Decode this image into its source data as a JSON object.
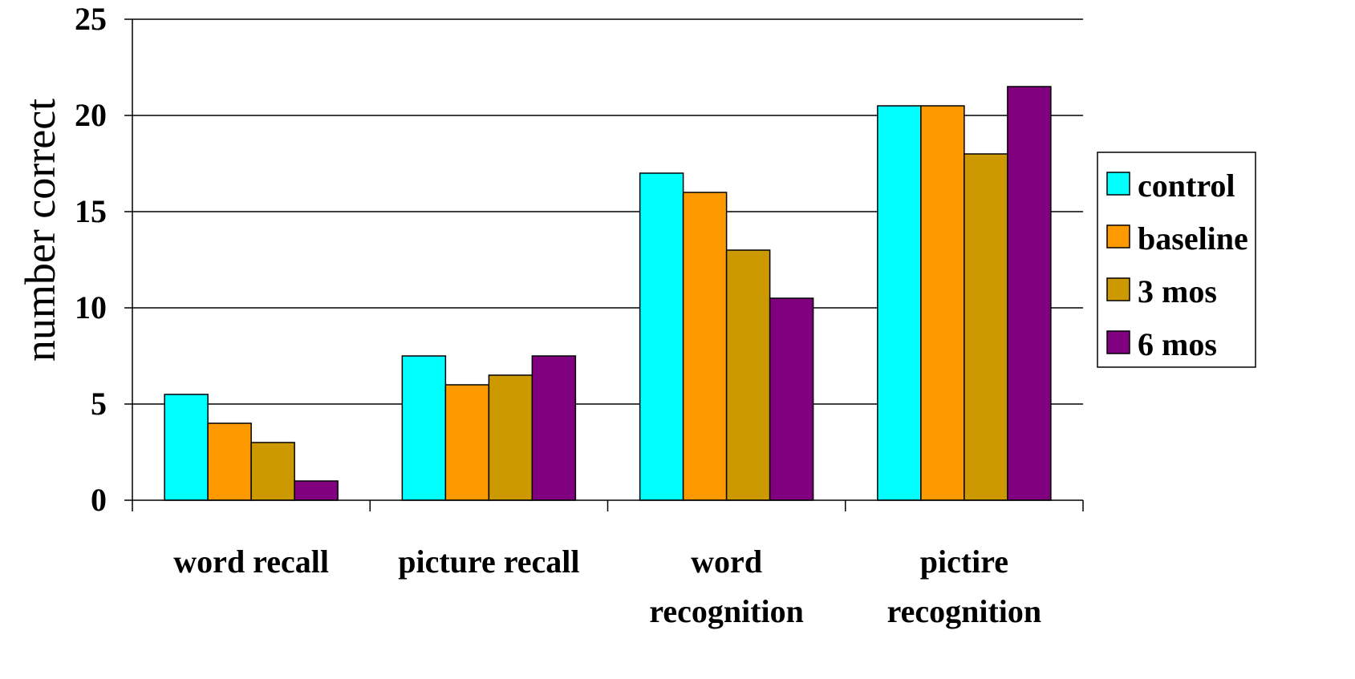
{
  "chart_data": {
    "type": "bar",
    "title": "",
    "xlabel": "",
    "ylabel": "number correct",
    "ylim": [
      0,
      25
    ],
    "yticks": [
      "0",
      "5",
      "10",
      "15",
      "20",
      "25"
    ],
    "grid": true,
    "legend_position": "right",
    "categories": [
      [
        "word recall"
      ],
      [
        "picture recall"
      ],
      [
        "word",
        "recognition"
      ],
      [
        "pictire",
        "recognition"
      ]
    ],
    "series": [
      {
        "name": "control",
        "color": "#00FFFF",
        "values": [
          5.5,
          7.5,
          17,
          20.5
        ]
      },
      {
        "name": "baseline",
        "color": "#FF9900",
        "values": [
          4,
          6,
          16,
          20.5
        ]
      },
      {
        "name": "3 mos",
        "color": "#CC9900",
        "values": [
          3,
          6.5,
          13,
          18
        ]
      },
      {
        "name": "6 mos",
        "color": "#800080",
        "values": [
          1,
          7.5,
          10.5,
          21.5
        ]
      }
    ]
  }
}
